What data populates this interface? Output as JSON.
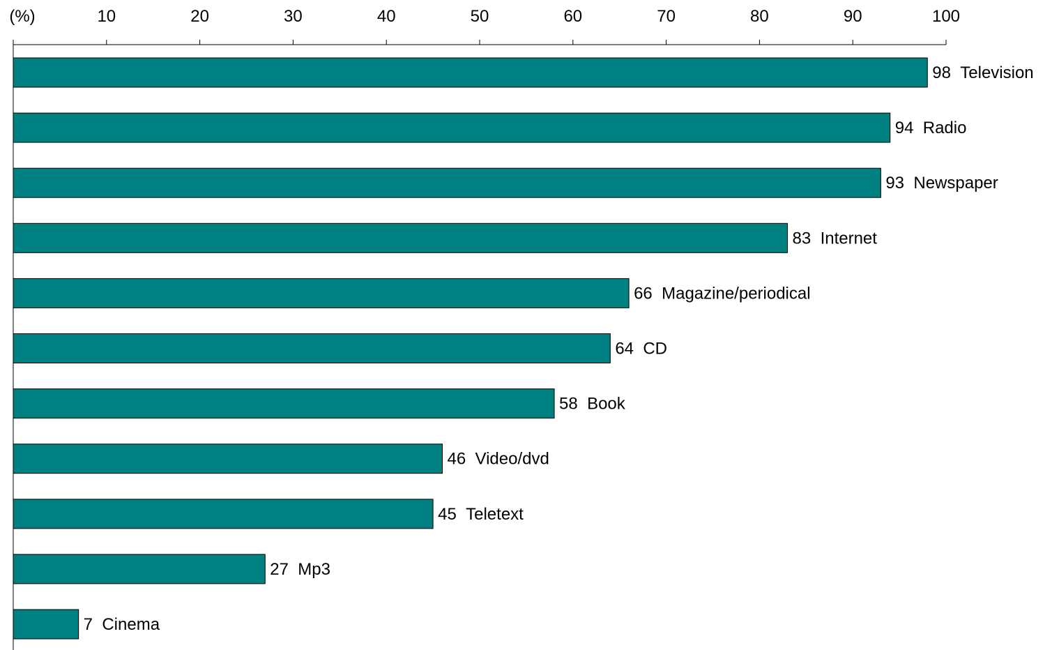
{
  "chart_data": {
    "type": "bar",
    "orientation": "horizontal",
    "unit_label": "(%)",
    "categories": [
      "Television",
      "Radio",
      "Newspaper",
      "Internet",
      "Magazine/periodical",
      "CD",
      "Book",
      "Video/dvd",
      "Teletext",
      "Mp3",
      "Cinema"
    ],
    "values": [
      98,
      94,
      93,
      83,
      66,
      64,
      58,
      46,
      45,
      27,
      7
    ],
    "xlim": [
      0,
      100
    ],
    "x_ticks": [
      10,
      20,
      30,
      40,
      50,
      60,
      70,
      80,
      90,
      100
    ],
    "x_axis_position": "top",
    "bar_color": "#008080",
    "bar_edge_color": "#000000",
    "grid": false,
    "legend": "none",
    "data_labels": "value and category after bar end"
  }
}
